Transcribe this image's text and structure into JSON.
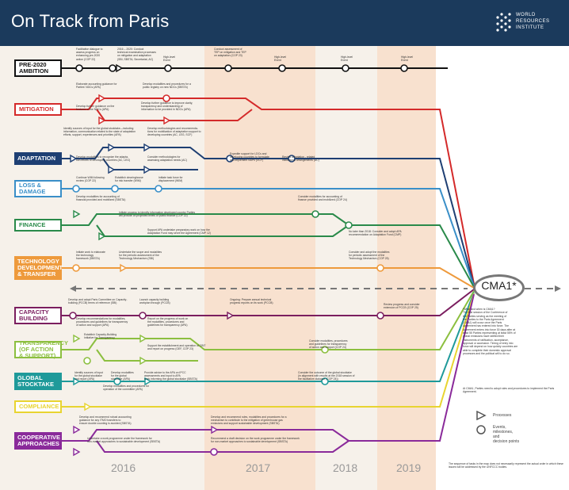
{
  "header": {
    "title": "On Track from Paris",
    "logo_text": [
      "WORLD",
      "RESOURCES",
      "INSTITUTE"
    ]
  },
  "colors": {
    "header_bg": "#1b3a5c",
    "pre2020": "#111111",
    "mitigation": "#d42a2a",
    "adaptation": "#1e3f73",
    "loss_damage": "#3a8fc8",
    "finance": "#2a8a4a",
    "technology": "#ee9a3c",
    "capacity": "#7b1e5f",
    "transparency": "#8cbf3f",
    "stocktake": "#1f9a9a",
    "compliance": "#e8d431",
    "cooperative": "#8a2a9a",
    "cma": "#777777"
  },
  "rows": [
    {
      "id": "pre2020",
      "label": [
        "PRE-2020",
        "AMBITION"
      ],
      "style": "dark"
    },
    {
      "id": "mitigation",
      "label": [
        "MITIGATION"
      ],
      "style": "outline"
    },
    {
      "id": "adaptation",
      "label": [
        "ADAPTATION"
      ],
      "style": "fill"
    },
    {
      "id": "loss_damage",
      "label": [
        "LOSS &",
        "DAMAGE"
      ],
      "style": "outline"
    },
    {
      "id": "finance",
      "label": [
        "FINANCE"
      ],
      "style": "outline"
    },
    {
      "id": "technology",
      "label": [
        "TECHNOLOGY",
        "DEVELOPMENT",
        "& TRANSFER"
      ],
      "style": "fill"
    },
    {
      "id": "capacity",
      "label": [
        "CAPACITY",
        "BUILDING"
      ],
      "style": "outline"
    },
    {
      "id": "transparency",
      "label": [
        "TRANSPARENCY",
        "(OF ACTION & SUPPORT)"
      ],
      "style": "outline"
    },
    {
      "id": "stocktake",
      "label": [
        "GLOBAL",
        "STOCKTAKE"
      ],
      "style": "fill"
    },
    {
      "id": "compliance",
      "label": [
        "COMPLIANCE"
      ],
      "style": "outline"
    },
    {
      "id": "cooperative",
      "label": [
        "COOPERATIVE",
        "APPROACHES"
      ],
      "style": "fill"
    }
  ],
  "notes": [
    {
      "text": "Facilitative dialogue to\nassess progress on\nenhancing pre-2020\naction (COP 22)"
    },
    {
      "text": "2016 – 2020: Conduct\ntechnical examination processes\non mitigation and adaptation\n(SBI, SBSTA, Secretariat, AC)"
    },
    {
      "text": "High-level\nEvent"
    },
    {
      "text": "Conduct assessment of\nTEP on mitigation and TEP\non adaptation (COP 23)"
    },
    {
      "text": "High-level\nEvent"
    },
    {
      "text": "High-level\nEvent"
    },
    {
      "text": "High-level\nEvent"
    },
    {
      "text": "Elaborate accounting guidance for\nParties' NDCs (APA)"
    },
    {
      "text": "Develop modalities and procedures for a\npublic registry on new NDCs (SBSTA)"
    },
    {
      "text": "Develop further guidance on the\nfeatures of the NDCs (APA)"
    },
    {
      "text": "Develop further guidance to improve clarity,\ntransparency and understanding of\ninformation to be provided in NDCs (APA)"
    },
    {
      "text": "Identify sources of input for the global stocktake—including\ninformation, communication related to the state of adaptation\nefforts, support, experiences and priorities (APA)"
    },
    {
      "text": "Develop methodologies and recommenda-\ntions for mobilization of adaptation support to\ndeveloping countries (AC, LEG, SCF)"
    },
    {
      "text": "Develop modalities to recognize the adapta-\ntion efforts of developing countries (AC, LEG)"
    },
    {
      "text": "Consider methodologies for\nassessing adaptation needs (AC)"
    },
    {
      "text": "Expedite support for LDCs and\ndeveloping countries to formulate\nand implement NAPs (GCF)"
    },
    {
      "text": "Review adaptation - related\ninstitutional arrangements (AC)"
    },
    {
      "text": "Continue WIM following\nreview (COP 22)"
    },
    {
      "text": "Establish clearinghouse\nfor risk transfer (WIM)"
    },
    {
      "text": "Initiate task force for\ndisplacement (WIM)"
    },
    {
      "text": "Develop modalities for accounting of\nfinancial provided and mobilized (SBSTA)"
    },
    {
      "text": "Consider modalities for accounting of\nfinance provided and mobilized (COP 24)"
    },
    {
      "text": "Initiate process to identify information developed country Parties\nwill provide on projected levels of public finance (COP 22)"
    },
    {
      "text": "Support APA undertake preparatory work on how the\nAdaptation Fund may serve the Agreement (CMP 12)"
    },
    {
      "text": "No later than 2018: Consider and adopt APA\nrecommendation on Adaptation Fund (CMP)"
    },
    {
      "text": "Initiate work to elaborate\nthe technology\nframework (SBSTA)"
    },
    {
      "text": "Undertake the scope and modalities\nfor the periodic assessment of the\nTechnology Mechanism (SBI)"
    },
    {
      "text": "Consider and adopt the modalities\nfor periodic assessment of the\nTechnology Mechanism (COP 25)"
    },
    {
      "text": "Develop and adopt Paris Committee on Capacity-\nbuilding (PCCB) terms of reference (SBI)"
    },
    {
      "text": "Launch capacity building\nworkplan through (PCCB)"
    },
    {
      "text": "Ongoing: Prepare annual technical\nprogress reports on its work (PCCB)"
    },
    {
      "text": "Review progress and consider\nextension of PCCB (COP 25)"
    },
    {
      "text": "Develop recommendations for modalities,\nprocedures and guidelines for transparency\nof action and support (APA)"
    },
    {
      "text": "Report on the progress of work on\nthe modalities, procedures and\nguidelines for transparency (APA)"
    },
    {
      "text": "Establish Capacity-Building\nInitiative for Transparency"
    },
    {
      "text": "Support the establishment and operation of CBIT\nand report on progress (GEF, COP 23)"
    },
    {
      "text": "Consider modalities, procedures\nand guidelines for transparency\nof action and support (COP 24)"
    },
    {
      "text": "Identify sources of input\nfor the global stocktake\nand report (APA)"
    },
    {
      "text": "Develop modalities\nfor the global\nstocktake (APA)"
    },
    {
      "text": "Provide advice to the APA on IPCC\nassessments and input to APA\nwork informing the global stocktake (SBSTA)"
    },
    {
      "text": "Consider the outcome of the global stocktake\n(in alignment with results at the 2018 session of\nthe facilitative dialogue (COP 24))"
    },
    {
      "text": "Develop modalities and procedures for\noperation of the committee (APA)"
    },
    {
      "text": "Develop and recommend robust accounting\nguidance for any ITMO transfers to\nensure double counting is avoided (SBSTA)"
    },
    {
      "text": "Develop and recommend rules, modalities and procedures for a\nmechanism to contribute to the mitigation of greenhouse gas\nemissions and support sustainable development (SBSTA)"
    },
    {
      "text": "Undertake a work programme under the framework for\nnon-market approaches to sustainable development (SBSTA)"
    },
    {
      "text": "Recommend a draft decision on the work programme under the framework\nfor non-market approaches to sustainable development (SBSTA)"
    }
  ],
  "cma": {
    "label": "CMA1*",
    "explain": "*What and when is CMA1?\nThe first session of the Conference of\nthe Parties serving as the meeting of\nthe Parties to the Paris Agreement\n(CMA1) will occur once the Paris\nAgreement has entered into force. The\nAgreement enters into force 30 days after at\nleast 55 Parties representing at least 55% of\nglobal emissions have ratified their\ninstruments of ratification, acceptance,\napproval or accession. Timing of entry into\nforce will depend on how quickly countries are\nable to complete their domestic approval\nprocesses and the political will to do so.",
    "explain2": "At CMA1, Parties need to adopt rules and\nprocedures to implement the Paris Agreement."
  },
  "legend": {
    "processes": "Processes",
    "events": "Events,\nmilestones,\nand\ndecision points"
  },
  "years": [
    "2016",
    "2017",
    "2018",
    "2019"
  ],
  "footnote": "The sequence of tasks in the map does not necessarily represent the actual order in which these issues will be addressed by the UNFCCC bodies."
}
